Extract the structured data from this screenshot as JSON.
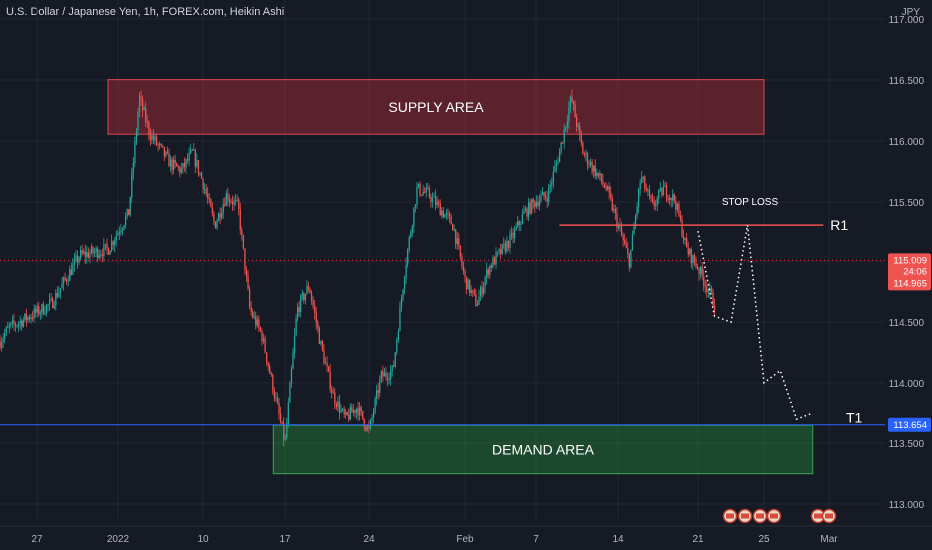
{
  "header": {
    "title": "U.S. Dollar / Japanese Yen, 1h, FOREX.com, Heikin Ashi"
  },
  "currency": "JPY",
  "colors": {
    "up": "#26a69a",
    "down": "#ef5350",
    "current_price": "#f23645",
    "t1_line": "#2962ff"
  },
  "chart_data": {
    "type": "candlestick",
    "title": "U.S. Dollar / Japanese Yen, 1h, FOREX.com, Heikin Ashi",
    "y_axis": {
      "range": [
        112.9,
        117.1
      ],
      "ticks": [
        "117.000",
        "116.500",
        "116.000",
        "115.500",
        "115.000",
        "114.500",
        "114.000",
        "113.500",
        "113.000"
      ]
    },
    "x_axis": {
      "ticks": [
        "27",
        "2022",
        "10",
        "17",
        "24",
        "Feb",
        "7",
        "14",
        "21",
        "25",
        "Mar"
      ]
    },
    "price_path": [
      [
        "Dec 23",
        114.1
      ],
      [
        "Dec 25",
        114.45
      ],
      [
        "Dec 28",
        114.65
      ],
      [
        "Dec 29",
        114.85
      ],
      [
        "Dec 30",
        115.05
      ],
      [
        "Jan 1",
        115.1
      ],
      [
        "Jan 2",
        115.25
      ],
      [
        "Jan 3",
        115.4
      ],
      [
        "Jan 4",
        116.35
      ],
      [
        "Jan 5",
        116.05
      ],
      [
        "Jan 7",
        115.8
      ],
      [
        "Jan 8",
        115.75
      ],
      [
        "Jan 9",
        115.9
      ],
      [
        "Jan 10",
        115.65
      ],
      [
        "Jan 11",
        115.3
      ],
      [
        "Jan 12",
        115.55
      ],
      [
        "Jan 13",
        115.45
      ],
      [
        "Jan 14",
        114.6
      ],
      [
        "Jan 15",
        114.4
      ],
      [
        "Jan 16",
        113.95
      ],
      [
        "Jan 17",
        113.5
      ],
      [
        "Jan 18",
        114.6
      ],
      [
        "Jan 19",
        114.8
      ],
      [
        "Jan 20",
        114.3
      ],
      [
        "Jan 21",
        113.9
      ],
      [
        "Jan 22",
        113.7
      ],
      [
        "Jan 23",
        113.8
      ],
      [
        "Jan 24",
        113.6
      ],
      [
        "Jan 25",
        114.05
      ],
      [
        "Jan 26",
        114.1
      ],
      [
        "Jan 27",
        114.95
      ],
      [
        "Jan 28",
        115.6
      ],
      [
        "Jan 29",
        115.55
      ],
      [
        "Jan 31",
        115.3
      ],
      [
        "Feb 1",
        114.85
      ],
      [
        "Feb 2",
        114.65
      ],
      [
        "Feb 3",
        114.95
      ],
      [
        "Feb 5",
        115.2
      ],
      [
        "Feb 6",
        115.4
      ],
      [
        "Feb 7",
        115.5
      ],
      [
        "Feb 8",
        115.55
      ],
      [
        "Feb 9",
        115.9
      ],
      [
        "Feb 10",
        116.35
      ],
      [
        "Feb 11",
        115.9
      ],
      [
        "Feb 13",
        115.6
      ],
      [
        "Feb 14",
        115.3
      ],
      [
        "Feb 15",
        115.0
      ],
      [
        "Feb 16",
        115.7
      ],
      [
        "Feb 17",
        115.45
      ],
      [
        "Feb 18",
        115.6
      ],
      [
        "Feb 19",
        115.5
      ],
      [
        "Feb 20",
        115.1
      ],
      [
        "Feb 21",
        114.95
      ],
      [
        "Feb 22",
        114.65
      ]
    ],
    "annotations": [
      {
        "type": "zone",
        "label": "SUPPLY AREA",
        "price_range": [
          116.05,
          116.5
        ],
        "date_range": [
          "Jan 1",
          "Feb 25"
        ]
      },
      {
        "type": "zone",
        "label": "DEMAND AREA",
        "price_range": [
          113.25,
          113.65
        ],
        "date_range": [
          "Jan 16",
          "Feb 28"
        ]
      },
      {
        "type": "line",
        "label": "R1",
        "price": 115.3,
        "date_range": [
          "Feb 9",
          "Feb 26"
        ]
      },
      {
        "type": "text",
        "label": "STOP LOSS",
        "price": 115.5,
        "date": "Feb 23"
      },
      {
        "type": "line",
        "label": "T1",
        "price": 113.654
      },
      {
        "type": "projection_path",
        "points": [
          [
            "Feb 21",
            115.25
          ],
          [
            "Feb 22",
            114.55
          ],
          [
            "Feb 23",
            114.5
          ],
          [
            "Feb 24",
            115.3
          ],
          [
            "Feb 25",
            114.0
          ],
          [
            "Feb 26",
            114.1
          ],
          [
            "Feb 27",
            113.7
          ],
          [
            "Feb 28",
            113.75
          ]
        ]
      }
    ],
    "price_badges": [
      {
        "value": "115.009",
        "color": "#ef5350"
      },
      {
        "value": "24:06",
        "color": "#ef5350"
      },
      {
        "value": "114.965",
        "color": "#ef5350"
      },
      {
        "value": "113.654",
        "color": "#2962ff"
      }
    ]
  }
}
